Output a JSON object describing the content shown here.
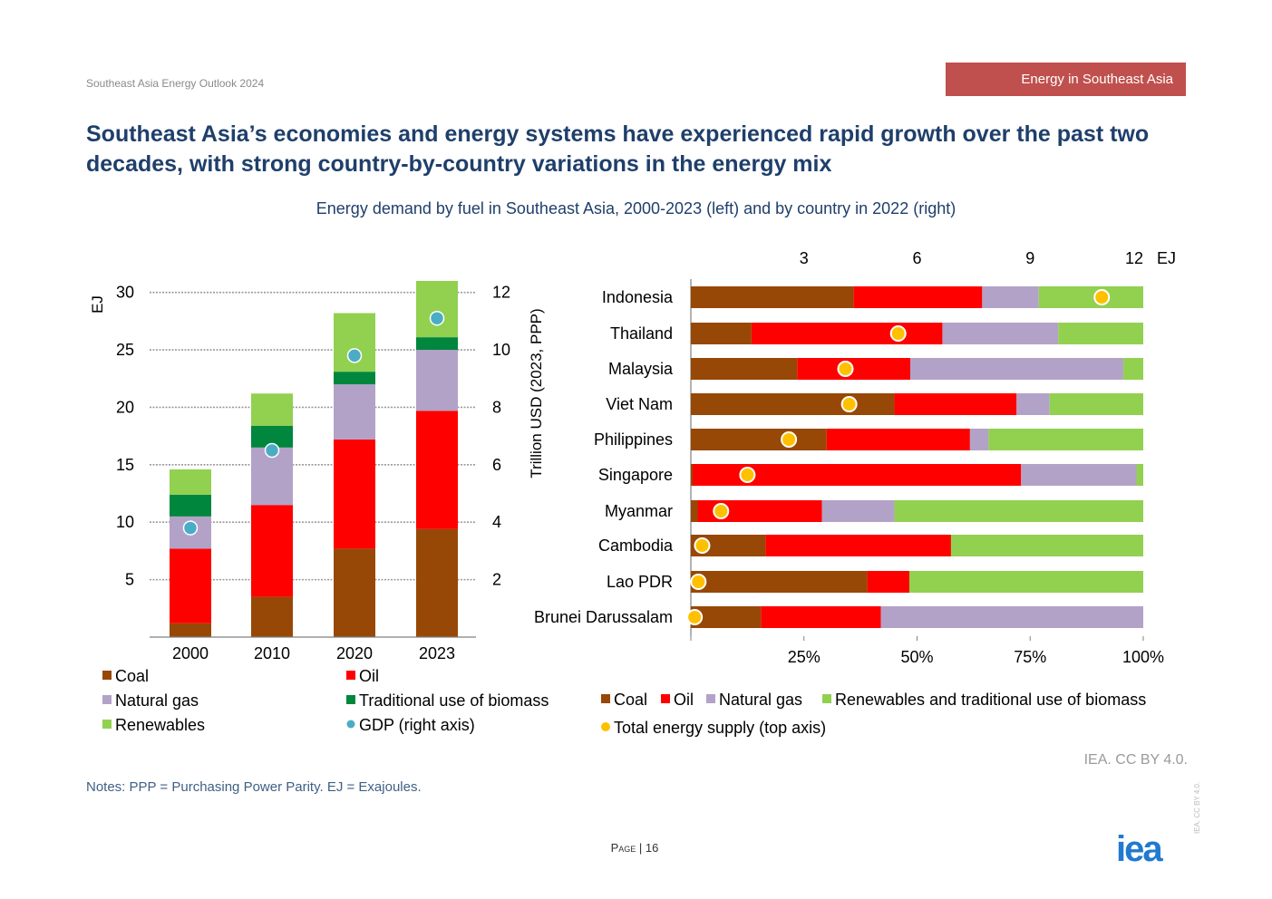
{
  "header": {
    "doc_label": "Southeast Asia Energy Outlook 2024",
    "section_tag": "Energy in Southeast Asia",
    "headline": "Southeast Asia’s economies and energy systems have experienced rapid growth over the past two decades, with strong country-by-country variations in the energy mix",
    "subtitle": "Energy demand by fuel in Southeast Asia, 2000-2023 (left) and by country in 2022 (right)"
  },
  "footer": {
    "credit": "IEA. CC BY 4.0.",
    "notes": "Notes: PPP = Purchasing Power Parity. EJ = Exajoules.",
    "page_word": "Page",
    "page_number": "| 16",
    "logo": "iea",
    "side_tag": "IEA. CC BY 4.0."
  },
  "colors": {
    "coal": "#974806",
    "oil": "#ff0000",
    "natural_gas": "#b3a2c7",
    "traditional_biomass": "#00863d",
    "renewables": "#92d050",
    "gdp": "#4bacc6",
    "total_supply": "#ffc000",
    "title": "#1f3f6b",
    "tag": "#c0504d"
  },
  "chart_data": [
    {
      "type": "bar",
      "stacked": true,
      "categories": [
        "2000",
        "2010",
        "2020",
        "2023"
      ],
      "ylabel": "EJ",
      "ylim": [
        0,
        31
      ],
      "yticks": [
        5,
        10,
        15,
        20,
        25,
        30
      ],
      "y2label": "Trillion USD (2023, PPP)",
      "y2lim": [
        0,
        12.4
      ],
      "y2ticks": [
        2,
        4,
        6,
        8,
        10,
        12
      ],
      "grid": true,
      "legend_position": "bottom",
      "series": [
        {
          "name": "Coal",
          "color_key": "coal",
          "values": [
            1.2,
            3.5,
            7.7,
            9.4
          ]
        },
        {
          "name": "Oil",
          "color_key": "oil",
          "values": [
            6.5,
            8.0,
            9.5,
            10.3
          ]
        },
        {
          "name": "Natural gas",
          "color_key": "natural_gas",
          "values": [
            2.8,
            5.0,
            4.8,
            5.3
          ]
        },
        {
          "name": "Traditional use of biomass",
          "color_key": "traditional_biomass",
          "values": [
            1.9,
            1.9,
            1.1,
            1.1
          ]
        },
        {
          "name": "Renewables",
          "color_key": "renewables",
          "values": [
            2.2,
            2.8,
            5.1,
            4.9
          ]
        }
      ],
      "line_series": {
        "name": "GDP (right axis)",
        "color_key": "gdp",
        "axis": "right",
        "values": [
          3.8,
          6.5,
          9.8,
          11.1
        ]
      }
    },
    {
      "type": "bar",
      "orientation": "horizontal",
      "stacked": true,
      "percent": true,
      "categories": [
        "Indonesia",
        "Thailand",
        "Malaysia",
        "Viet Nam",
        "Philippines",
        "Singapore",
        "Myanmar",
        "Cambodia",
        "Lao PDR",
        "Brunei Darussalam"
      ],
      "xlim": [
        0,
        100
      ],
      "xticks": [
        "25%",
        "50%",
        "75%",
        "100%"
      ],
      "x2lim": [
        0,
        12
      ],
      "x2ticks": [
        "3",
        "6",
        "9",
        "12"
      ],
      "x2unit": "EJ",
      "grid": false,
      "legend_position": "bottom",
      "series": [
        {
          "name": "Coal",
          "color_key": "coal",
          "values": [
            36,
            13.4,
            23.5,
            45,
            30,
            0.4,
            1.5,
            16.5,
            39,
            15.5
          ]
        },
        {
          "name": "Oil",
          "color_key": "oil",
          "values": [
            28.4,
            42.2,
            25,
            27,
            31.7,
            72.6,
            27.5,
            41,
            9.3,
            26.5
          ]
        },
        {
          "name": "Natural gas",
          "color_key": "natural_gas",
          "values": [
            12.5,
            25.6,
            47.1,
            7.3,
            4.1,
            25.5,
            16,
            0,
            0,
            58
          ]
        },
        {
          "name": "Renewables and traditional use of biomass",
          "color_key": "renewables",
          "values": [
            23.1,
            18.8,
            4.4,
            20.7,
            34.2,
            1.5,
            55,
            42.5,
            51.7,
            0
          ]
        }
      ],
      "dot_series": {
        "name": "Total energy supply (top axis)",
        "color_key": "total_supply",
        "axis": "top",
        "values": [
          10.9,
          5.5,
          4.1,
          4.2,
          2.6,
          1.5,
          0.8,
          0.3,
          0.2,
          0.1
        ]
      }
    }
  ],
  "legends": {
    "left": [
      "Coal",
      "Oil",
      "Natural gas",
      "Traditional use of biomass",
      "Renewables",
      "GDP (right axis)"
    ],
    "right": [
      "Coal",
      "Oil",
      "Natural gas",
      "Renewables and traditional use of biomass",
      "Total energy supply (top axis)"
    ]
  }
}
